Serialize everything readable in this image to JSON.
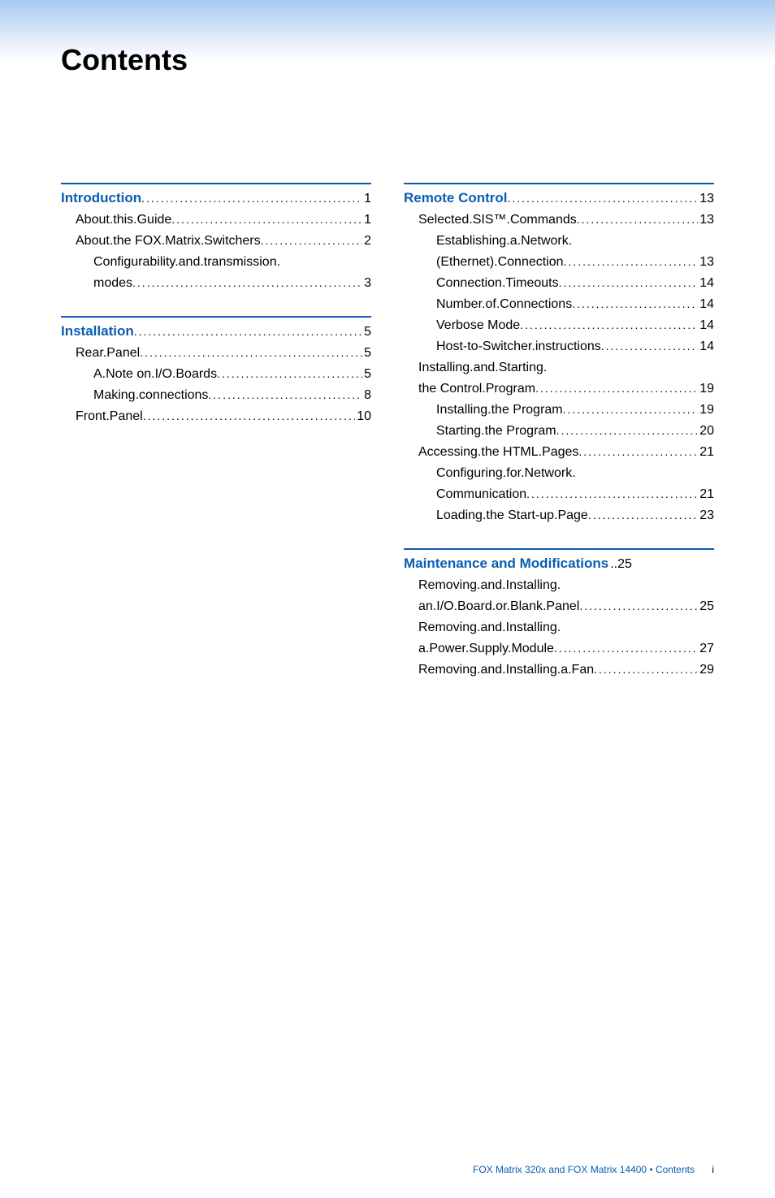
{
  "title": "Contents",
  "columns": {
    "left": [
      {
        "heading": {
          "label": "Introduction",
          "page": "1"
        },
        "rows": [
          {
            "lvl": 1,
            "label": "About.this.Guide",
            "page": "1"
          },
          {
            "lvl": 1,
            "label": "About.the FOX.Matrix.Switchers",
            "page": "2"
          },
          {
            "lvl": 2,
            "label": "Configurability.and.transmission."
          },
          {
            "lvl": 2,
            "label": "modes",
            "page": "3"
          }
        ]
      },
      {
        "heading": {
          "label": "Installation",
          "page": "5"
        },
        "rows": [
          {
            "lvl": 1,
            "label": "Rear.Panel",
            "page": "5"
          },
          {
            "lvl": 2,
            "label": "A.Note on.I/O.Boards",
            "page": "5"
          },
          {
            "lvl": 2,
            "label": "Making.connections",
            "page": "8"
          },
          {
            "lvl": 1,
            "label": "Front.Panel",
            "page": "10"
          }
        ]
      }
    ],
    "right": [
      {
        "heading": {
          "label": "Remote Control",
          "page": "13"
        },
        "rows": [
          {
            "lvl": 1,
            "label": "Selected.SIS™.Commands",
            "page": "13"
          },
          {
            "lvl": 2,
            "label": "Establishing.a.Network."
          },
          {
            "lvl": 2,
            "label": "(Ethernet).Connection",
            "page": "13"
          },
          {
            "lvl": 2,
            "label": "Connection.Timeouts",
            "page": "14"
          },
          {
            "lvl": 2,
            "label": "Number.of.Connections",
            "page": "14"
          },
          {
            "lvl": 2,
            "label": "Verbose Mode",
            "page": "14"
          },
          {
            "lvl": 2,
            "label": "Host-to-Switcher.instructions",
            "page": "14"
          },
          {
            "lvl": 1,
            "label": "Installing.and.Starting."
          },
          {
            "lvl": 1,
            "label": "the Control.Program",
            "page": "19"
          },
          {
            "lvl": 2,
            "label": "Installing.the Program",
            "page": "19"
          },
          {
            "lvl": 2,
            "label": "Starting.the Program",
            "page": "20"
          },
          {
            "lvl": 1,
            "label": "Accessing.the HTML.Pages",
            "page": "21"
          },
          {
            "lvl": 2,
            "label": "Configuring.for.Network."
          },
          {
            "lvl": 2,
            "label": "Communication",
            "page": "21"
          },
          {
            "lvl": 2,
            "label": "Loading.the Start-up.Page",
            "page": "23"
          }
        ]
      },
      {
        "heading": {
          "label": "Maintenance and Modifications",
          "page": "25",
          "tight": true
        },
        "rows": [
          {
            "lvl": 1,
            "label": "Removing.and.Installing."
          },
          {
            "lvl": 1,
            "label": "an.I/O.Board.or.Blank.Panel",
            "page": "25"
          },
          {
            "lvl": 1,
            "label": "Removing.and.Installing."
          },
          {
            "lvl": 1,
            "label": "a.Power.Supply.Module",
            "page": "27"
          },
          {
            "lvl": 1,
            "label": "Removing.and.Installing.a.Fan",
            "page": "29"
          }
        ]
      }
    ]
  },
  "footer": {
    "text": "FOX Matrix 320x and FOX Matrix 14400 • Contents",
    "page": "i"
  },
  "colors": {
    "link": "#0a5db0",
    "text": "#000",
    "rule": "#9a9a9a"
  },
  "typography": {
    "title_pt": 36,
    "section_pt": 17,
    "body_pt": 16,
    "footer_pt": 12,
    "family": "Arial"
  }
}
